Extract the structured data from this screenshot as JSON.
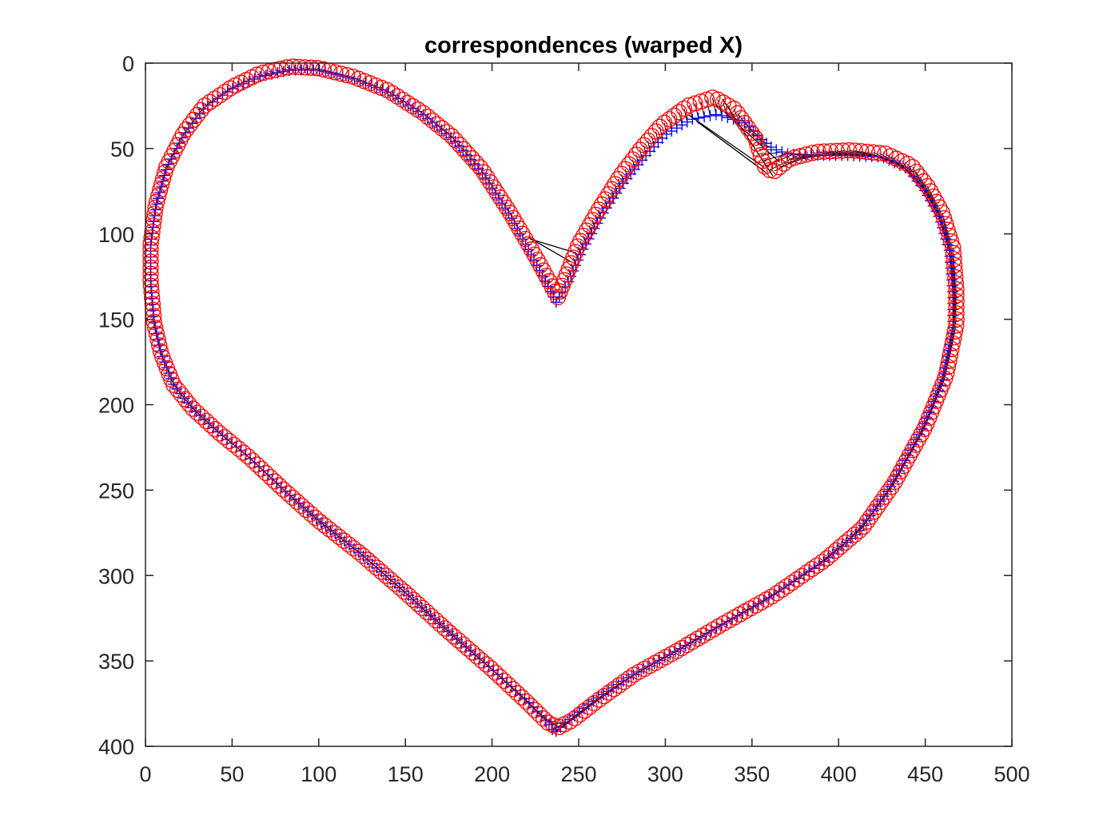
{
  "chart_data": {
    "type": "scatter",
    "title": "correspondences (warped X)",
    "xlabel": "",
    "ylabel": "",
    "xlim": [
      0,
      500
    ],
    "ylim": [
      0,
      400
    ],
    "y_axis_reversed": true,
    "grid": false,
    "legend": "none",
    "x_ticks": [
      "0",
      "50",
      "100",
      "150",
      "200",
      "250",
      "300",
      "350",
      "400",
      "450",
      "500"
    ],
    "y_ticks": [
      "0",
      "50",
      "100",
      "150",
      "200",
      "250",
      "300",
      "350",
      "400"
    ],
    "x_tick_values": [
      0,
      50,
      100,
      150,
      200,
      250,
      300,
      350,
      400,
      450,
      500
    ],
    "y_tick_values": [
      0,
      50,
      100,
      150,
      200,
      250,
      300,
      350,
      400
    ],
    "series": [
      {
        "marker": "plus",
        "color": "#0000ff",
        "outline": [
          [
            237,
            140
          ],
          [
            224,
            115
          ],
          [
            211,
            90
          ],
          [
            195,
            65
          ],
          [
            178,
            45
          ],
          [
            160,
            30
          ],
          [
            140,
            17
          ],
          [
            120,
            9
          ],
          [
            100,
            4
          ],
          [
            84,
            4
          ],
          [
            66,
            8
          ],
          [
            50,
            15
          ],
          [
            34,
            26
          ],
          [
            22,
            42
          ],
          [
            12,
            62
          ],
          [
            6,
            84
          ],
          [
            3,
            106
          ],
          [
            3,
            128
          ],
          [
            5,
            152
          ],
          [
            9,
            170
          ],
          [
            16,
            188
          ],
          [
            27,
            202
          ],
          [
            42,
            216
          ],
          [
            60,
            231
          ],
          [
            80,
            250
          ],
          [
            100,
            268
          ],
          [
            125,
            288
          ],
          [
            150,
            310
          ],
          [
            175,
            333
          ],
          [
            200,
            355
          ],
          [
            220,
            373
          ],
          [
            232,
            386
          ],
          [
            236,
            392
          ],
          [
            244,
            385
          ],
          [
            258,
            374
          ],
          [
            280,
            359
          ],
          [
            305,
            345
          ],
          [
            330,
            330
          ],
          [
            360,
            313
          ],
          [
            390,
            293
          ],
          [
            412,
            274
          ],
          [
            430,
            248
          ],
          [
            448,
            215
          ],
          [
            460,
            185
          ],
          [
            466,
            155
          ],
          [
            466,
            135
          ],
          [
            464,
            110
          ],
          [
            458,
            90
          ],
          [
            450,
            75
          ],
          [
            440,
            62
          ],
          [
            425,
            55
          ],
          [
            405,
            54
          ],
          [
            385,
            54
          ],
          [
            370,
            53
          ],
          [
            362,
            50
          ],
          [
            356,
            45
          ],
          [
            346,
            35
          ],
          [
            330,
            30
          ],
          [
            315,
            33
          ],
          [
            300,
            42
          ],
          [
            288,
            55
          ],
          [
            276,
            70
          ],
          [
            264,
            88
          ],
          [
            252,
            110
          ],
          [
            244,
            128
          ],
          [
            237,
            140
          ]
        ]
      },
      {
        "marker": "circle",
        "color": "#ff0000",
        "outline": [
          [
            238,
            137
          ],
          [
            225,
            113
          ],
          [
            210,
            87
          ],
          [
            194,
            62
          ],
          [
            177,
            43
          ],
          [
            160,
            29
          ],
          [
            140,
            16
          ],
          [
            120,
            8
          ],
          [
            100,
            3
          ],
          [
            84,
            2
          ],
          [
            66,
            6
          ],
          [
            50,
            14
          ],
          [
            34,
            25
          ],
          [
            22,
            41
          ],
          [
            12,
            61
          ],
          [
            6,
            83
          ],
          [
            3,
            106
          ],
          [
            3,
            128
          ],
          [
            5,
            152
          ],
          [
            9,
            170
          ],
          [
            16,
            188
          ],
          [
            27,
            202
          ],
          [
            42,
            216
          ],
          [
            60,
            231
          ],
          [
            80,
            250
          ],
          [
            100,
            268
          ],
          [
            125,
            288
          ],
          [
            150,
            310
          ],
          [
            175,
            333
          ],
          [
            200,
            355
          ],
          [
            220,
            374
          ],
          [
            232,
            386
          ],
          [
            238,
            389
          ],
          [
            246,
            385
          ],
          [
            260,
            374
          ],
          [
            282,
            358
          ],
          [
            307,
            344
          ],
          [
            332,
            329
          ],
          [
            362,
            312
          ],
          [
            392,
            291
          ],
          [
            414,
            272
          ],
          [
            432,
            246
          ],
          [
            450,
            213
          ],
          [
            462,
            183
          ],
          [
            468,
            153
          ],
          [
            468,
            133
          ],
          [
            466,
            108
          ],
          [
            460,
            88
          ],
          [
            452,
            73
          ],
          [
            442,
            60
          ],
          [
            427,
            53
          ],
          [
            407,
            51
          ],
          [
            387,
            52
          ],
          [
            372,
            56
          ],
          [
            362,
            64
          ],
          [
            357,
            60
          ],
          [
            352,
            44
          ],
          [
            340,
            27
          ],
          [
            328,
            20
          ],
          [
            313,
            25
          ],
          [
            298,
            36
          ],
          [
            286,
            50
          ],
          [
            274,
            66
          ],
          [
            262,
            85
          ],
          [
            250,
            106
          ],
          [
            243,
            124
          ],
          [
            238,
            137
          ]
        ]
      }
    ],
    "correspondence_lines": {
      "color": "#000000",
      "description_pairs": [
        [
          [
            222,
            103
          ],
          [
            248,
            111
          ]
        ],
        [
          [
            221,
            102
          ],
          [
            245,
            116
          ]
        ],
        [
          [
            318,
            34
          ],
          [
            358,
            64
          ]
        ],
        [
          [
            313,
            30
          ],
          [
            357,
            61
          ]
        ],
        [
          [
            329,
            24
          ],
          [
            366,
            58
          ]
        ],
        [
          [
            333,
            21
          ],
          [
            362,
            66
          ]
        ],
        [
          [
            373,
            53
          ],
          [
            388,
            54
          ]
        ]
      ]
    }
  }
}
